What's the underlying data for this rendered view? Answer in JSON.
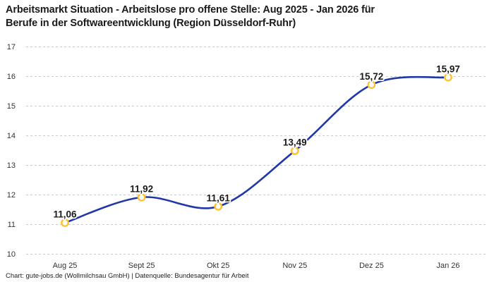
{
  "header": {
    "title_line1": "Arbeitsmarkt Situation - Arbeitslose pro offene Stelle: Aug 2025 - Jan 2026 für",
    "title_line2": "Berufe in der Softwareentwicklung (Region Düsseldorf-Ruhr)"
  },
  "footer": {
    "text": "Chart: gute-jobs.de (Wollmilchsau GmbH) | Datenquelle: Bundesagentur für Arbeit"
  },
  "chart_data": {
    "type": "line",
    "title": "Arbeitsmarkt Situation - Arbeitslose pro offene Stelle: Aug 2025 - Jan 2026 für Berufe in der Softwareentwicklung (Region Düsseldorf-Ruhr)",
    "categories": [
      "Aug 25",
      "Sept 25",
      "Okt 25",
      "Nov 25",
      "Dez 25",
      "Jan 26"
    ],
    "values": [
      11.06,
      11.92,
      11.61,
      13.49,
      15.72,
      15.97
    ],
    "value_labels": [
      "11,06",
      "11,92",
      "11,61",
      "13,49",
      "15,72",
      "15,97"
    ],
    "xlabel": "",
    "ylabel": "",
    "ylim": [
      10,
      17
    ],
    "yticks": [
      10,
      11,
      12,
      13,
      14,
      15,
      16,
      17
    ],
    "grid": "horizontal-dashed",
    "legend": "none",
    "interpolation": "curved",
    "marker": "open-circle",
    "colors": {
      "line": "#2038a8",
      "marker_stroke": "#fcc32c",
      "marker_fill": "#ffffff",
      "grid": "#c9c9c9",
      "value_label": "#1a1a1a",
      "axis_label": "#333333",
      "title": "#1a1a1a",
      "background": "#ffffff"
    }
  }
}
